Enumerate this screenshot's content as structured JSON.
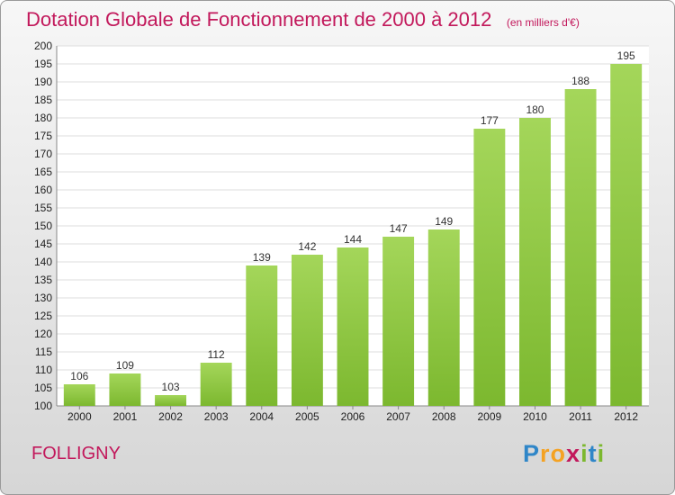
{
  "chart_data": {
    "type": "bar",
    "title": "Dotation Globale de Fonctionnement de 2000 à 2012",
    "subtitle": "(en milliers d'€)",
    "categories": [
      "2000",
      "2001",
      "2002",
      "2003",
      "2004",
      "2005",
      "2006",
      "2007",
      "2008",
      "2009",
      "2010",
      "2011",
      "2012"
    ],
    "values": [
      106,
      109,
      103,
      112,
      139,
      142,
      144,
      147,
      149,
      177,
      180,
      188,
      195
    ],
    "ylim": [
      100,
      200
    ],
    "ytick_step": 5,
    "grid": true,
    "bar_color": "#7cb82f",
    "bar_color_light": "#a4d65a"
  },
  "commune": "FOLLIGNY",
  "logo": {
    "letters": [
      "P",
      "r",
      "o",
      "x",
      "i",
      "t",
      "i"
    ],
    "colors": [
      "#2f86c8",
      "#f4a223",
      "#f4a223",
      "#c2185b",
      "#7cb82f",
      "#2f86c8",
      "#7cb82f"
    ]
  }
}
